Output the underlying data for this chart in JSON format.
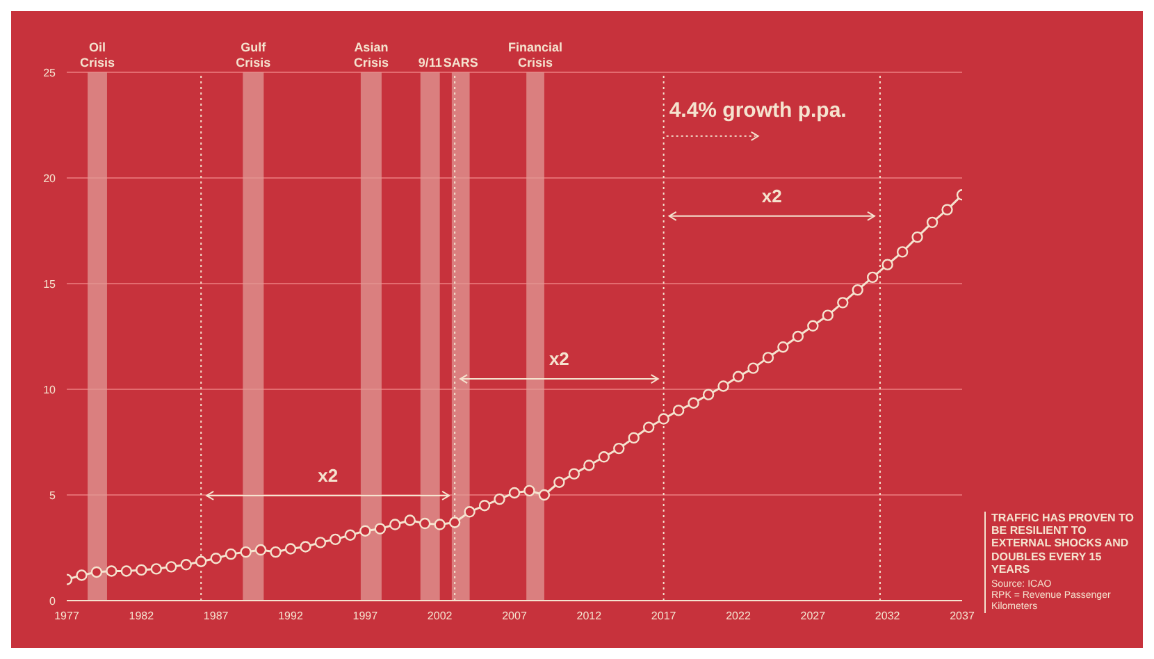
{
  "chart_data": {
    "type": "line",
    "x": [
      1977,
      1978,
      1979,
      1980,
      1981,
      1982,
      1983,
      1984,
      1985,
      1986,
      1987,
      1988,
      1989,
      1990,
      1991,
      1992,
      1993,
      1994,
      1995,
      1996,
      1997,
      1998,
      1999,
      2000,
      2001,
      2002,
      2003,
      2004,
      2005,
      2006,
      2007,
      2008,
      2009,
      2010,
      2011,
      2012,
      2013,
      2014,
      2015,
      2016,
      2017,
      2018,
      2019,
      2020,
      2021,
      2022,
      2023,
      2024,
      2025,
      2026,
      2027,
      2028,
      2029,
      2030,
      2031,
      2032,
      2033,
      2034,
      2035,
      2036,
      2037
    ],
    "series": [
      {
        "color": "#f5e3cf",
        "values": [
          1.0,
          1.2,
          1.35,
          1.4,
          1.4,
          1.45,
          1.5,
          1.6,
          1.7,
          1.85,
          2.0,
          2.2,
          2.3,
          2.4,
          2.3,
          2.45,
          2.55,
          2.75,
          2.9,
          3.1,
          3.3,
          3.4,
          3.6,
          3.8,
          3.65,
          3.6,
          3.7,
          4.2,
          4.5,
          4.8,
          5.1,
          5.2,
          5.0,
          5.6,
          6.0,
          6.4,
          6.8,
          7.2,
          7.7,
          8.2,
          8.6,
          9.0,
          9.35,
          9.75,
          10.15,
          10.6,
          11.0,
          11.5,
          12.0,
          12.5,
          13.0,
          13.5,
          14.1,
          14.7,
          15.3,
          15.9,
          16.5,
          17.2,
          17.9,
          18.5,
          19.2
        ]
      }
    ],
    "xlim": [
      1977,
      2037
    ],
    "xticks": [
      1977,
      1982,
      1987,
      1992,
      1997,
      2002,
      2007,
      2012,
      2017,
      2022,
      2027,
      2032,
      2037
    ],
    "ylim": [
      0,
      25
    ],
    "yticks": [
      0,
      5,
      10,
      15,
      20,
      25
    ],
    "grid": "y",
    "marker": "circle",
    "line_style": "solid",
    "bands": [
      {
        "axis": "x",
        "from": 1978.4,
        "to": 1979.7,
        "label": "Oil Crisis",
        "color": "#e09a95"
      },
      {
        "axis": "x",
        "from": 1988.8,
        "to": 1990.2,
        "label": "Gulf Crisis",
        "color": "#e09a95"
      },
      {
        "axis": "x",
        "from": 1996.7,
        "to": 1998.1,
        "label": "Asian Crisis",
        "color": "#e09a95"
      },
      {
        "axis": "x",
        "from": 2000.7,
        "to": 2002.0,
        "label": "9/11",
        "color": "#e09a95"
      },
      {
        "axis": "x",
        "from": 2002.8,
        "to": 2004.0,
        "label": "SARS",
        "color": "#e09a95"
      },
      {
        "axis": "x",
        "from": 2007.8,
        "to": 2009.0,
        "label": "Financial Crisis",
        "color": "#e09a95"
      }
    ],
    "ref_lines": [
      {
        "axis": "x",
        "value": 1986,
        "line_style": "dotted",
        "color": "#f5e3cf"
      },
      {
        "axis": "x",
        "value": 2003,
        "line_style": "dotted",
        "color": "#f5e3cf"
      },
      {
        "axis": "x",
        "value": 2017,
        "line_style": "dotted",
        "color": "#f5e3cf"
      },
      {
        "axis": "x",
        "value": 2031.5,
        "line_style": "dotted",
        "color": "#f5e3cf"
      }
    ],
    "annotations": [
      "x2",
      "x2",
      "x2",
      {
        "text": "4.4% growth p.pa.",
        "x": 2017,
        "y": 22.9
      },
      "TRAFFIC HAS PROVEN TO BE RESILIENT TO EXTERNAL SHOCKS AND DOUBLES EVERY 15 YEARS",
      "Source: ICAO",
      "RPK = Revenue Passenger Kilometers"
    ]
  }
}
